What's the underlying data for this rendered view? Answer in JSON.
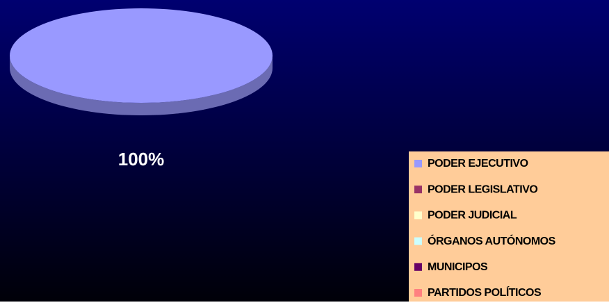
{
  "chart_data": {
    "type": "pie",
    "categories": [
      "PODER EJECUTIVO",
      "PODER LEGISLATIVO",
      "PODER JUDICIAL",
      "ÓRGANOS AUTÓNOMOS",
      "MUNICIPOS",
      "PARTIDOS POLÍTICOS"
    ],
    "values": [
      100,
      0,
      0,
      0,
      0,
      0
    ],
    "value_labels": [
      "100%",
      null,
      null,
      null,
      null,
      null
    ],
    "colors": [
      "#9999ff",
      "#993366",
      "#ffffcc",
      "#ccffff",
      "#660066",
      "#ff8080"
    ],
    "legend": "bottom-right"
  }
}
